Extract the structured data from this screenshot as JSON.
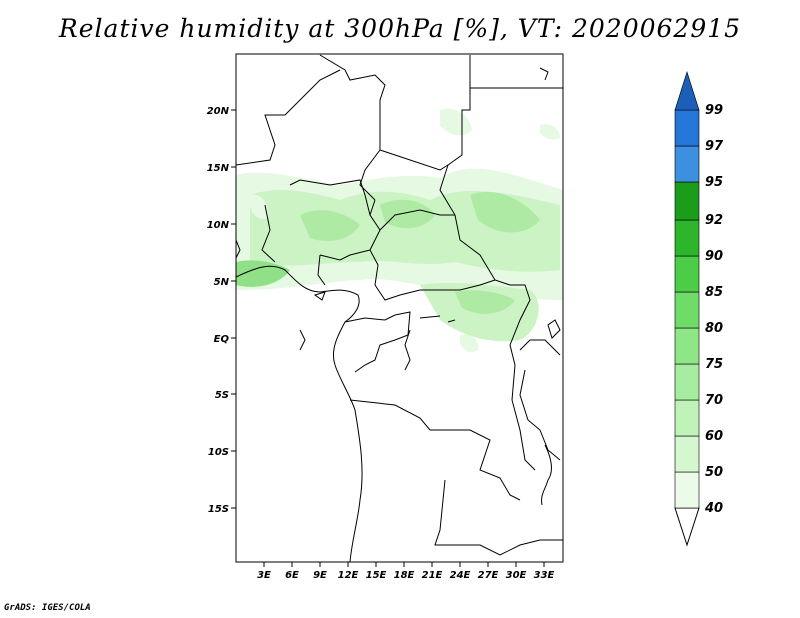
{
  "title": "Relative humidity at 300hPa [%], VT: 2020062915",
  "credit": "GrADS: IGES/COLA",
  "map": {
    "lat_ticks": [
      "20N",
      "15N",
      "10N",
      "5N",
      "EQ",
      "5S",
      "10S",
      "15S"
    ],
    "lon_ticks": [
      "3E",
      "6E",
      "9E",
      "12E",
      "15E",
      "18E",
      "21E",
      "24E",
      "27E",
      "30E",
      "33E"
    ],
    "lat_range": [
      -19,
      24
    ],
    "lon_range": [
      0,
      35
    ]
  },
  "colorbar": {
    "labels": [
      "40",
      "50",
      "60",
      "70",
      "75",
      "80",
      "85",
      "90",
      "92",
      "95",
      "97",
      "99"
    ],
    "colors": [
      "#ebfbe8",
      "#d4f7cf",
      "#bff3b8",
      "#a7eda0",
      "#8ee686",
      "#70dc68",
      "#4ccd47",
      "#2db52b",
      "#1b9d1b",
      "#3d8fe0",
      "#2476d8",
      "#1b5fb8"
    ],
    "unit": "%"
  },
  "humidity_shading_colors": [
    "#e6f9e3",
    "#cbf3c4",
    "#aeeaa4",
    "#8fe086"
  ]
}
